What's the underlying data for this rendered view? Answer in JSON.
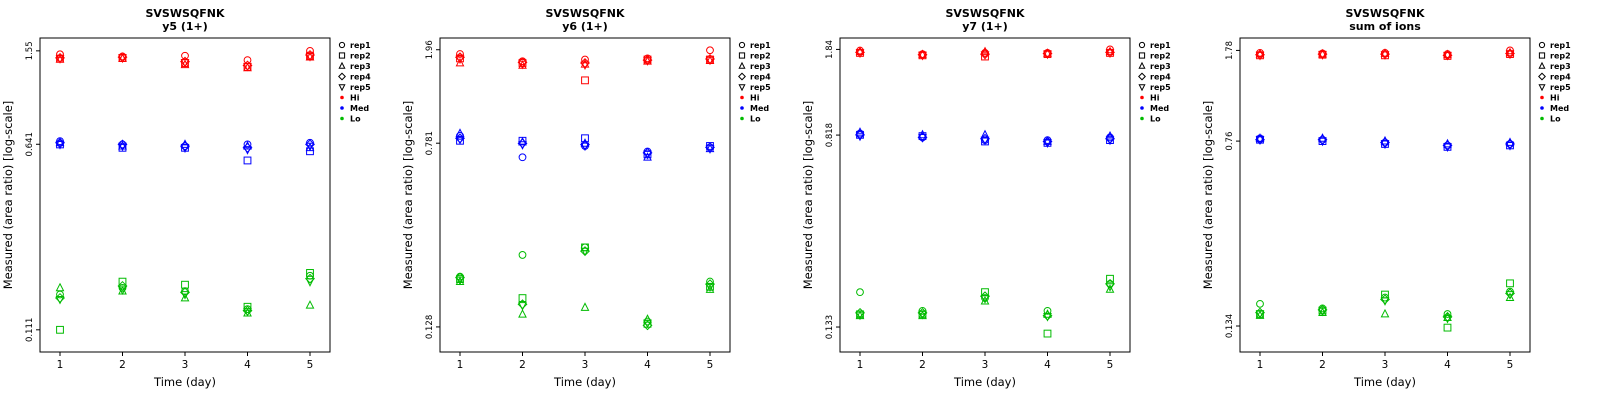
{
  "page": {
    "background": "#ffffff"
  },
  "symbols": [
    "circle",
    "square",
    "triangle",
    "diamond",
    "triangle-down"
  ],
  "rep_labels": [
    "rep1",
    "rep2",
    "rep3",
    "rep4",
    "rep5"
  ],
  "group_defs": [
    {
      "label": "Hi",
      "color": "#ff0000"
    },
    {
      "label": "Med",
      "color": "#0000ff"
    },
    {
      "label": "Lo",
      "color": "#00bb00"
    }
  ],
  "chart_data": [
    {
      "type": "scatter",
      "title": "SVSWSQFNK",
      "subtitle": "y5 (1+)",
      "xlabel": "Time (day)",
      "ylabel": "Measured (area ratio) [log-scale]",
      "x_ticks": [
        "1",
        "2",
        "3",
        "4",
        "5"
      ],
      "y_ticks": [
        1.55,
        0.641,
        0.111
      ],
      "y_tick_labels": [
        "1.55",
        "0.641",
        "0.111"
      ],
      "ylim": [
        0.09,
        1.75
      ],
      "log_scale": true,
      "groups": [
        {
          "name": "Hi",
          "reps": [
            [
              1.5,
              1.47,
              1.48,
              1.42,
              1.55
            ],
            [
              1.44,
              1.45,
              1.38,
              1.33,
              1.48
            ],
            [
              1.43,
              1.44,
              1.36,
              1.32,
              1.46
            ],
            [
              1.45,
              1.46,
              1.4,
              1.35,
              1.49
            ],
            [
              1.44,
              1.45,
              1.39,
              1.34,
              1.47
            ]
          ]
        },
        {
          "name": "Med",
          "reps": [
            [
              0.66,
              0.64,
              0.63,
              0.64,
              0.65
            ],
            [
              0.64,
              0.62,
              0.62,
              0.55,
              0.6
            ],
            [
              0.65,
              0.63,
              0.64,
              0.63,
              0.62
            ],
            [
              0.65,
              0.64,
              0.63,
              0.62,
              0.64
            ],
            [
              0.64,
              0.63,
              0.62,
              0.61,
              0.63
            ]
          ]
        },
        {
          "name": "Lo",
          "reps": [
            [
              0.155,
              0.165,
              0.16,
              0.135,
              0.185
            ],
            [
              0.111,
              0.175,
              0.17,
              0.138,
              0.19
            ],
            [
              0.165,
              0.16,
              0.15,
              0.13,
              0.14
            ],
            [
              0.15,
              0.168,
              0.158,
              0.133,
              0.18
            ],
            [
              0.148,
              0.162,
              0.155,
              0.132,
              0.175
            ]
          ]
        }
      ]
    },
    {
      "type": "scatter",
      "title": "SVSWSQFNK",
      "subtitle": "y6 (1+)",
      "xlabel": "Time (day)",
      "ylabel": "Measured (area ratio) [log-scale]",
      "x_ticks": [
        "1",
        "2",
        "3",
        "4",
        "5"
      ],
      "y_ticks": [
        1.96,
        0.781,
        0.128
      ],
      "y_tick_labels": [
        "1.96",
        "0.781",
        "0.128"
      ],
      "ylim": [
        0.1,
        2.2
      ],
      "log_scale": true,
      "groups": [
        {
          "name": "Hi",
          "reps": [
            [
              1.88,
              1.75,
              1.78,
              1.8,
              1.95
            ],
            [
              1.8,
              1.72,
              1.45,
              1.78,
              1.78
            ],
            [
              1.72,
              1.68,
              1.7,
              1.75,
              1.76
            ],
            [
              1.82,
              1.73,
              1.72,
              1.77,
              1.79
            ],
            [
              1.79,
              1.7,
              1.69,
              1.76,
              1.77
            ]
          ]
        },
        {
          "name": "Med",
          "reps": [
            [
              0.84,
              0.68,
              0.76,
              0.72,
              0.75
            ],
            [
              0.8,
              0.8,
              0.82,
              0.7,
              0.76
            ],
            [
              0.86,
              0.79,
              0.78,
              0.68,
              0.74
            ],
            [
              0.82,
              0.78,
              0.77,
              0.71,
              0.75
            ],
            [
              0.81,
              0.77,
              0.76,
              0.7,
              0.74
            ]
          ]
        },
        {
          "name": "Lo",
          "reps": [
            [
              0.21,
              0.26,
              0.28,
              0.135,
              0.2
            ],
            [
              0.205,
              0.17,
              0.28,
              0.132,
              0.19
            ],
            [
              0.2,
              0.145,
              0.155,
              0.138,
              0.185
            ],
            [
              0.208,
              0.16,
              0.27,
              0.13,
              0.195
            ],
            [
              0.203,
              0.158,
              0.27,
              0.133,
              0.19
            ]
          ]
        }
      ]
    },
    {
      "type": "scatter",
      "title": "SVSWSQFNK",
      "subtitle": "y7 (1+)",
      "xlabel": "Time (day)",
      "ylabel": "Measured (area ratio) [log-scale]",
      "x_ticks": [
        "1",
        "2",
        "3",
        "4",
        "5"
      ],
      "y_ticks": [
        1.84,
        0.818,
        0.133
      ],
      "y_tick_labels": [
        "1.84",
        "0.818",
        "0.133"
      ],
      "ylim": [
        0.105,
        2.05
      ],
      "log_scale": true,
      "groups": [
        {
          "name": "Hi",
          "reps": [
            [
              1.82,
              1.76,
              1.78,
              1.78,
              1.84
            ],
            [
              1.78,
              1.74,
              1.72,
              1.76,
              1.78
            ],
            [
              1.8,
              1.75,
              1.8,
              1.77,
              1.8
            ],
            [
              1.79,
              1.75,
              1.76,
              1.77,
              1.79
            ],
            [
              1.78,
              1.74,
              1.75,
              1.76,
              1.78
            ]
          ]
        },
        {
          "name": "Med",
          "reps": [
            [
              0.83,
              0.8,
              0.78,
              0.78,
              0.8
            ],
            [
              0.82,
              0.81,
              0.77,
              0.76,
              0.78
            ],
            [
              0.84,
              0.82,
              0.82,
              0.77,
              0.81
            ],
            [
              0.82,
              0.8,
              0.79,
              0.77,
              0.79
            ],
            [
              0.81,
              0.8,
              0.78,
              0.76,
              0.78
            ]
          ]
        },
        {
          "name": "Lo",
          "reps": [
            [
              0.185,
              0.155,
              0.175,
              0.155,
              0.2
            ],
            [
              0.15,
              0.15,
              0.185,
              0.125,
              0.21
            ],
            [
              0.148,
              0.148,
              0.17,
              0.15,
              0.19
            ],
            [
              0.152,
              0.152,
              0.178,
              0.148,
              0.2
            ],
            [
              0.149,
              0.15,
              0.174,
              0.147,
              0.195
            ]
          ]
        }
      ]
    },
    {
      "type": "scatter",
      "title": "SVSWSQFNK",
      "subtitle": "sum of ions",
      "xlabel": "Time (day)",
      "ylabel": "Measured (area ratio) [log-scale]",
      "x_ticks": [
        "1",
        "2",
        "3",
        "4",
        "5"
      ],
      "y_ticks": [
        1.78,
        0.76,
        0.134
      ],
      "y_tick_labels": [
        "1.78",
        "0.76",
        "0.134"
      ],
      "ylim": [
        0.105,
        2.0
      ],
      "log_scale": true,
      "groups": [
        {
          "name": "Hi",
          "reps": [
            [
              1.74,
              1.73,
              1.74,
              1.72,
              1.78
            ],
            [
              1.7,
              1.71,
              1.7,
              1.69,
              1.72
            ],
            [
              1.72,
              1.72,
              1.73,
              1.71,
              1.74
            ],
            [
              1.71,
              1.72,
              1.72,
              1.7,
              1.73
            ],
            [
              1.7,
              1.71,
              1.71,
              1.7,
              1.72
            ]
          ]
        },
        {
          "name": "Med",
          "reps": [
            [
              0.78,
              0.77,
              0.75,
              0.73,
              0.74
            ],
            [
              0.77,
              0.76,
              0.74,
              0.72,
              0.73
            ],
            [
              0.78,
              0.78,
              0.76,
              0.74,
              0.75
            ],
            [
              0.77,
              0.77,
              0.75,
              0.73,
              0.74
            ],
            [
              0.77,
              0.76,
              0.74,
              0.72,
              0.73
            ]
          ]
        },
        {
          "name": "Lo",
          "reps": [
            [
              0.165,
              0.158,
              0.175,
              0.15,
              0.185
            ],
            [
              0.15,
              0.155,
              0.18,
              0.132,
              0.2
            ],
            [
              0.148,
              0.152,
              0.15,
              0.145,
              0.175
            ],
            [
              0.152,
              0.156,
              0.172,
              0.146,
              0.182
            ],
            [
              0.15,
              0.154,
              0.17,
              0.144,
              0.18
            ]
          ]
        }
      ]
    }
  ]
}
